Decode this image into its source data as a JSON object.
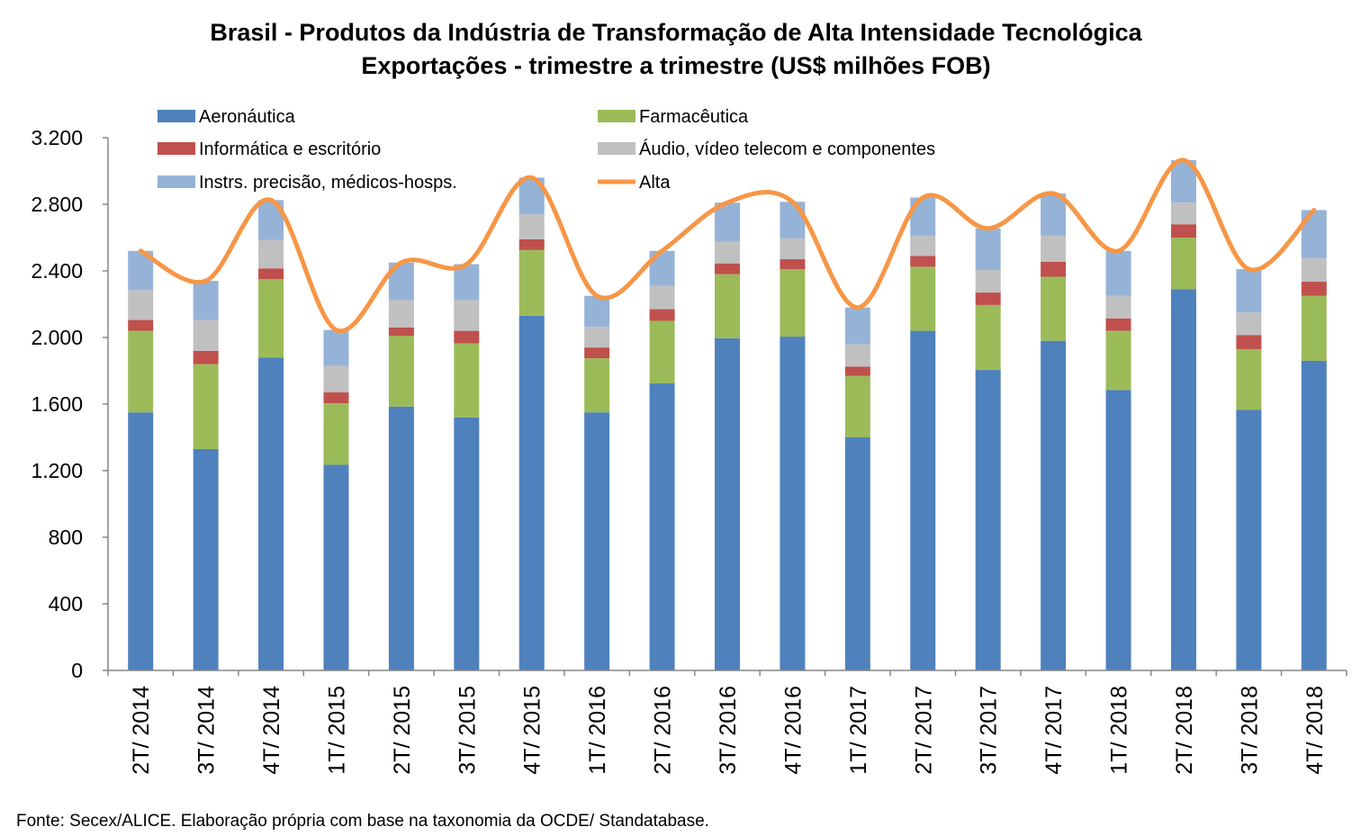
{
  "chart_data": {
    "type": "bar",
    "title": "Brasil - Produtos da Indústria de Transformação de Alta Intensidade Tecnológica",
    "subtitle": "Exportações - trimestre a trimestre (US$ milhões FOB)",
    "xlabel": "",
    "ylabel": "",
    "ylim": [
      0,
      3200
    ],
    "yticks": [
      0,
      400,
      800,
      1200,
      1600,
      2000,
      2400,
      2800,
      3200
    ],
    "ytick_labels": [
      "0",
      "400",
      "800",
      "1.200",
      "1.600",
      "2.000",
      "2.400",
      "2.800",
      "3.200"
    ],
    "grid": false,
    "legend_position": "top",
    "stacked": true,
    "categories": [
      "2T/ 2014",
      "3T/ 2014",
      "4T/ 2014",
      "1T/ 2015",
      "2T/ 2015",
      "3T/ 2015",
      "4T/ 2015",
      "1T/ 2016",
      "2T/ 2016",
      "3T/ 2016",
      "4T/ 2016",
      "1T/ 2017",
      "2T/ 2017",
      "3T/ 2017",
      "4T/ 2017",
      "1T/ 2018",
      "2T/ 2018",
      "3T/ 2018",
      "4T/ 2018"
    ],
    "series": [
      {
        "name": "Aeronáutica",
        "type": "bar",
        "color": "#4f81bd",
        "values": [
          1550,
          1330,
          1880,
          1235,
          1585,
          1520,
          2130,
          1550,
          1725,
          1995,
          2005,
          1400,
          2040,
          1805,
          1980,
          1685,
          2290,
          1565,
          1860
        ]
      },
      {
        "name": "Farmacêutica",
        "type": "bar",
        "color": "#9bbb59",
        "values": [
          490,
          510,
          470,
          370,
          425,
          445,
          395,
          325,
          375,
          385,
          405,
          370,
          385,
          390,
          385,
          355,
          310,
          365,
          390
        ]
      },
      {
        "name": "Informática e escritório",
        "type": "bar",
        "color": "#c0504d",
        "values": [
          65,
          80,
          65,
          65,
          50,
          75,
          65,
          65,
          70,
          65,
          60,
          55,
          65,
          75,
          90,
          75,
          80,
          85,
          85
        ]
      },
      {
        "name": "Áudio, vídeo telecom e componentes",
        "type": "bar",
        "color": "#c0c0c0",
        "values": [
          180,
          185,
          170,
          160,
          165,
          185,
          150,
          125,
          140,
          130,
          125,
          135,
          120,
          135,
          155,
          135,
          130,
          135,
          140
        ]
      },
      {
        "name": "Instrs. precisão, médicos-hosps.",
        "type": "bar",
        "color": "#95b3d7",
        "values": [
          235,
          235,
          240,
          215,
          225,
          215,
          220,
          185,
          210,
          235,
          220,
          220,
          230,
          250,
          255,
          270,
          255,
          260,
          290
        ]
      },
      {
        "name": "Alta",
        "type": "line",
        "color": "#f79646",
        "values": [
          2520,
          2340,
          2825,
          2045,
          2450,
          2440,
          2960,
          2250,
          2520,
          2810,
          2815,
          2180,
          2840,
          2655,
          2865,
          2520,
          3065,
          2410,
          2765
        ]
      }
    ]
  },
  "source": "Fonte: Secex/ALICE. Elaboração própria com base na taxonomia da OCDE/ Standatabase."
}
